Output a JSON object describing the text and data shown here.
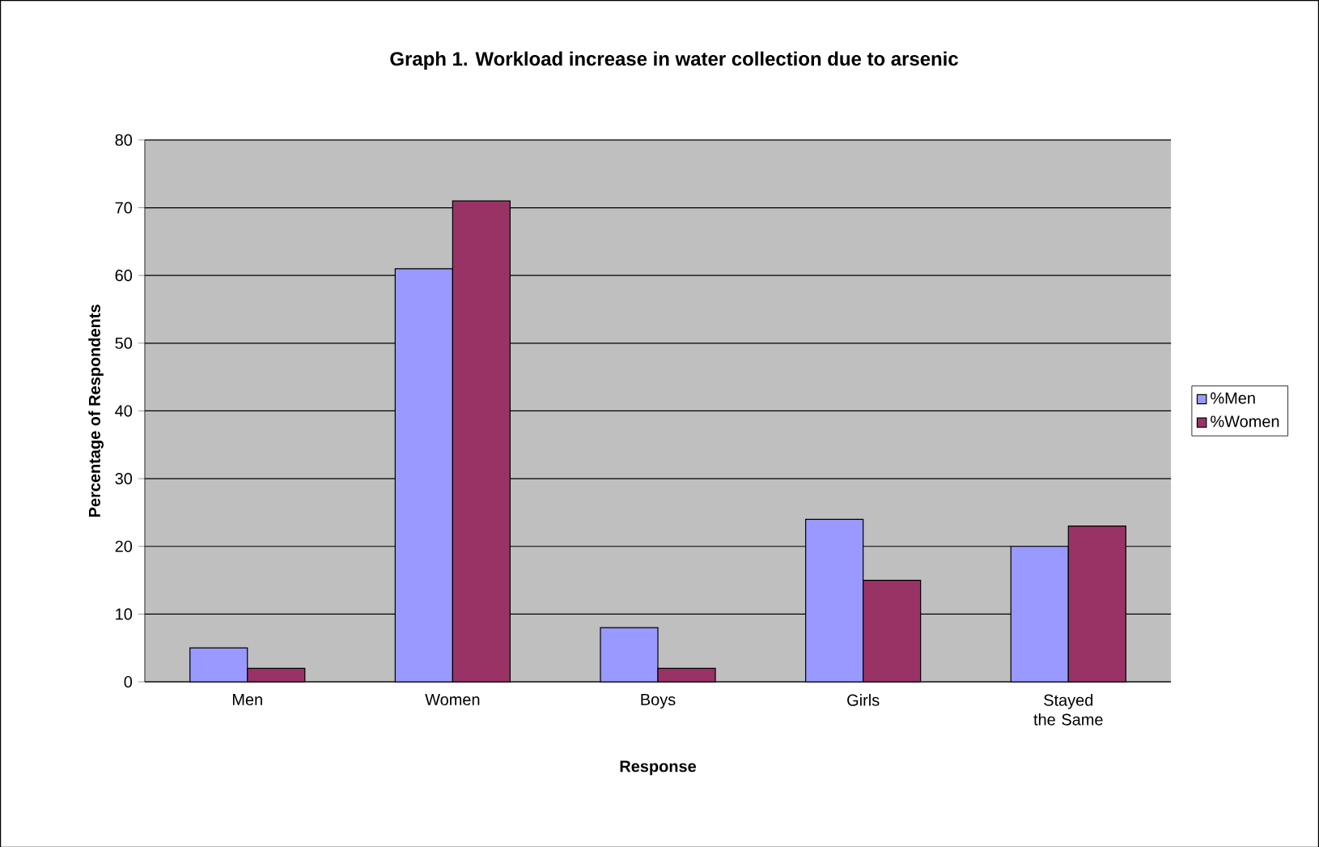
{
  "chart_data": {
    "type": "bar",
    "title": "Graph 1. Workload increase in water collection due to arsenic",
    "xlabel": "Response",
    "ylabel": "Percentage of Respondents",
    "categories": [
      "Men",
      "Women",
      "Boys",
      "Girls",
      "Stayed the Same"
    ],
    "series": [
      {
        "name": "%Men",
        "color": "#9999ff",
        "values": [
          5,
          61,
          8,
          24,
          20
        ]
      },
      {
        "name": "%Women",
        "color": "#993366",
        "values": [
          2,
          71,
          2,
          15,
          23
        ]
      }
    ],
    "ylim": [
      0,
      80
    ],
    "yticks": [
      0,
      10,
      20,
      30,
      40,
      50,
      60,
      70,
      80
    ],
    "grid": "y",
    "legend": "right"
  }
}
